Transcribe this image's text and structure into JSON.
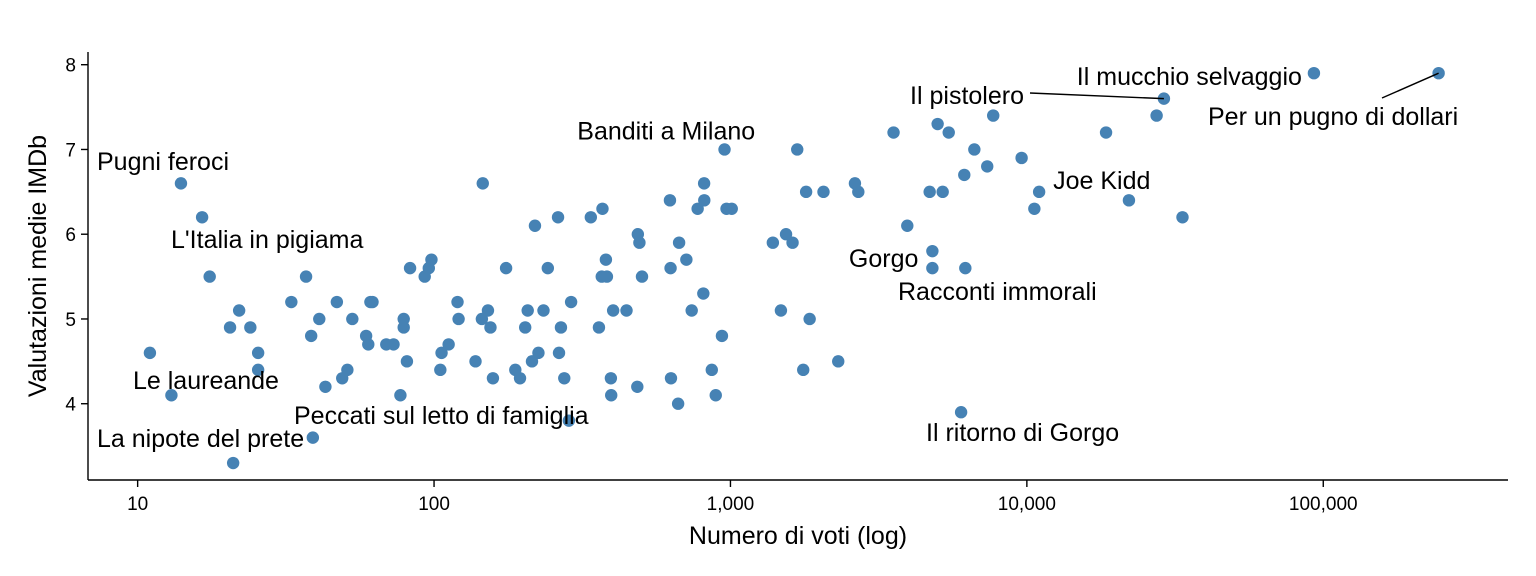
{
  "chart_data": {
    "type": "scatter",
    "xlabel": "Numero di voti (log)",
    "ylabel": "Valutazioni medie IMDb",
    "x_scale": "log10",
    "xlim": [
      6.8,
      420000
    ],
    "ylim": [
      3.1,
      8.15
    ],
    "x_ticks": [
      {
        "value": 10,
        "label": "10"
      },
      {
        "value": 100,
        "label": "100"
      },
      {
        "value": 1000,
        "label": "1,000"
      },
      {
        "value": 10000,
        "label": "10,000"
      },
      {
        "value": 100000,
        "label": "100,000"
      }
    ],
    "y_ticks": [
      {
        "value": 4,
        "label": "4"
      },
      {
        "value": 5,
        "label": "5"
      },
      {
        "value": 6,
        "label": "6"
      },
      {
        "value": 7,
        "label": "7"
      },
      {
        "value": 8,
        "label": "8"
      }
    ],
    "point_color": "#4682B4",
    "grid": false,
    "labels": [
      {
        "text": "Il mucchio selvaggio",
        "x": 93000,
        "y": 7.9
      },
      {
        "text": "Per un pugno di dollari",
        "x": 245000,
        "y": 7.9
      },
      {
        "text": "Il pistolero",
        "x": 29000,
        "y": 7.6
      },
      {
        "text": "Banditi a Milano",
        "x": 960,
        "y": 7.0
      },
      {
        "text": "Pugni feroci",
        "x": 14,
        "y": 6.6
      },
      {
        "text": "Joe Kidd",
        "x": 11000,
        "y": 6.5
      },
      {
        "text": "L'Italia in pigiama",
        "x": 17.5,
        "y": 5.5
      },
      {
        "text": "Gorgo",
        "x": 4800,
        "y": 5.8
      },
      {
        "text": "Racconti immorali",
        "x": 4800,
        "y": 5.6
      },
      {
        "text": "Le laureande",
        "x": 13,
        "y": 4.1
      },
      {
        "text": "Peccati sul letto di famiglia",
        "x": 285,
        "y": 3.8
      },
      {
        "text": "La nipote del prete",
        "x": 21,
        "y": 3.3
      },
      {
        "text": "Il ritorno di Gorgo",
        "x": 6000,
        "y": 3.9
      }
    ],
    "points": [
      {
        "x": 11,
        "y": 4.6
      },
      {
        "x": 13,
        "y": 4.1
      },
      {
        "x": 14,
        "y": 6.6
      },
      {
        "x": 16.5,
        "y": 6.2
      },
      {
        "x": 17.5,
        "y": 5.5
      },
      {
        "x": 20.5,
        "y": 4.9
      },
      {
        "x": 21,
        "y": 3.3
      },
      {
        "x": 22,
        "y": 5.1
      },
      {
        "x": 24,
        "y": 4.9
      },
      {
        "x": 25.5,
        "y": 4.6
      },
      {
        "x": 25.5,
        "y": 4.4
      },
      {
        "x": 33,
        "y": 5.2
      },
      {
        "x": 37,
        "y": 5.5
      },
      {
        "x": 38.5,
        "y": 4.8
      },
      {
        "x": 39,
        "y": 3.6
      },
      {
        "x": 41,
        "y": 5.0
      },
      {
        "x": 43,
        "y": 4.2
      },
      {
        "x": 47,
        "y": 5.2
      },
      {
        "x": 49,
        "y": 4.3
      },
      {
        "x": 51,
        "y": 4.4
      },
      {
        "x": 53,
        "y": 5.0
      },
      {
        "x": 59,
        "y": 4.8
      },
      {
        "x": 60,
        "y": 4.7
      },
      {
        "x": 61,
        "y": 5.2
      },
      {
        "x": 62,
        "y": 5.2
      },
      {
        "x": 69,
        "y": 4.7
      },
      {
        "x": 73,
        "y": 4.7
      },
      {
        "x": 77,
        "y": 4.1
      },
      {
        "x": 79,
        "y": 5.0
      },
      {
        "x": 79,
        "y": 4.9
      },
      {
        "x": 81,
        "y": 4.5
      },
      {
        "x": 83,
        "y": 5.6
      },
      {
        "x": 93,
        "y": 5.5
      },
      {
        "x": 96,
        "y": 5.6
      },
      {
        "x": 98,
        "y": 5.7
      },
      {
        "x": 105,
        "y": 4.4
      },
      {
        "x": 106,
        "y": 4.6
      },
      {
        "x": 112,
        "y": 4.7
      },
      {
        "x": 120,
        "y": 5.2
      },
      {
        "x": 121,
        "y": 5.0
      },
      {
        "x": 138,
        "y": 4.5
      },
      {
        "x": 145,
        "y": 5.0
      },
      {
        "x": 146,
        "y": 6.6
      },
      {
        "x": 152,
        "y": 5.1
      },
      {
        "x": 155,
        "y": 4.9
      },
      {
        "x": 158,
        "y": 4.3
      },
      {
        "x": 175,
        "y": 5.6
      },
      {
        "x": 188,
        "y": 4.4
      },
      {
        "x": 195,
        "y": 4.3
      },
      {
        "x": 203,
        "y": 4.9
      },
      {
        "x": 207,
        "y": 5.1
      },
      {
        "x": 214,
        "y": 4.5
      },
      {
        "x": 219,
        "y": 6.1
      },
      {
        "x": 225,
        "y": 4.6
      },
      {
        "x": 234,
        "y": 5.1
      },
      {
        "x": 242,
        "y": 5.6
      },
      {
        "x": 262,
        "y": 6.2
      },
      {
        "x": 264,
        "y": 4.6
      },
      {
        "x": 268,
        "y": 4.9
      },
      {
        "x": 275,
        "y": 4.3
      },
      {
        "x": 285,
        "y": 3.8
      },
      {
        "x": 290,
        "y": 5.2
      },
      {
        "x": 338,
        "y": 6.2
      },
      {
        "x": 360,
        "y": 4.9
      },
      {
        "x": 368,
        "y": 5.5
      },
      {
        "x": 370,
        "y": 6.3
      },
      {
        "x": 380,
        "y": 5.7
      },
      {
        "x": 383,
        "y": 5.5
      },
      {
        "x": 395,
        "y": 4.3
      },
      {
        "x": 396,
        "y": 4.1
      },
      {
        "x": 402,
        "y": 5.1
      },
      {
        "x": 446,
        "y": 5.1
      },
      {
        "x": 485,
        "y": 4.2
      },
      {
        "x": 487,
        "y": 6.0
      },
      {
        "x": 493,
        "y": 5.9
      },
      {
        "x": 503,
        "y": 5.5
      },
      {
        "x": 625,
        "y": 6.4
      },
      {
        "x": 628,
        "y": 5.6
      },
      {
        "x": 630,
        "y": 4.3
      },
      {
        "x": 666,
        "y": 4.0
      },
      {
        "x": 671,
        "y": 5.9
      },
      {
        "x": 710,
        "y": 5.7
      },
      {
        "x": 740,
        "y": 5.1
      },
      {
        "x": 775,
        "y": 6.3
      },
      {
        "x": 810,
        "y": 5.3
      },
      {
        "x": 815,
        "y": 6.6
      },
      {
        "x": 816,
        "y": 6.4
      },
      {
        "x": 865,
        "y": 4.4
      },
      {
        "x": 892,
        "y": 4.1
      },
      {
        "x": 936,
        "y": 4.8
      },
      {
        "x": 955,
        "y": 7.0
      },
      {
        "x": 970,
        "y": 6.3
      },
      {
        "x": 1010,
        "y": 6.3
      },
      {
        "x": 1390,
        "y": 5.9
      },
      {
        "x": 1480,
        "y": 5.1
      },
      {
        "x": 1540,
        "y": 6.0
      },
      {
        "x": 1620,
        "y": 5.9
      },
      {
        "x": 1680,
        "y": 7.0
      },
      {
        "x": 1760,
        "y": 4.4
      },
      {
        "x": 1800,
        "y": 6.5
      },
      {
        "x": 1850,
        "y": 5.0
      },
      {
        "x": 2060,
        "y": 6.5
      },
      {
        "x": 2310,
        "y": 4.5
      },
      {
        "x": 2630,
        "y": 6.6
      },
      {
        "x": 2700,
        "y": 6.5
      },
      {
        "x": 3550,
        "y": 7.2
      },
      {
        "x": 3950,
        "y": 6.1
      },
      {
        "x": 4700,
        "y": 6.5
      },
      {
        "x": 4800,
        "y": 5.8
      },
      {
        "x": 4800,
        "y": 5.6
      },
      {
        "x": 5000,
        "y": 7.3
      },
      {
        "x": 5200,
        "y": 6.5
      },
      {
        "x": 5450,
        "y": 7.2
      },
      {
        "x": 6000,
        "y": 3.9
      },
      {
        "x": 6150,
        "y": 6.7
      },
      {
        "x": 6200,
        "y": 5.6
      },
      {
        "x": 6650,
        "y": 7.0
      },
      {
        "x": 7350,
        "y": 6.8
      },
      {
        "x": 7700,
        "y": 7.4
      },
      {
        "x": 9600,
        "y": 6.9
      },
      {
        "x": 10600,
        "y": 6.3
      },
      {
        "x": 11000,
        "y": 6.5
      },
      {
        "x": 18500,
        "y": 7.2
      },
      {
        "x": 22100,
        "y": 6.4
      },
      {
        "x": 27400,
        "y": 7.4
      },
      {
        "x": 29000,
        "y": 7.6
      },
      {
        "x": 33500,
        "y": 6.2
      },
      {
        "x": 93000,
        "y": 7.9
      },
      {
        "x": 245000,
        "y": 7.9
      }
    ]
  }
}
